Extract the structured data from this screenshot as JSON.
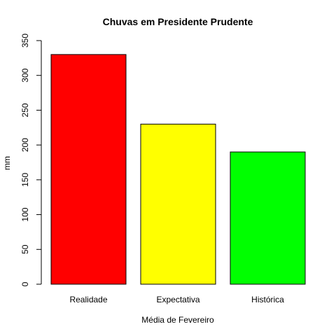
{
  "chart_data": {
    "type": "bar",
    "title": "Chuvas em Presidente Prudente",
    "xlabel": "Média de Fevereiro",
    "ylabel": "mm",
    "categories": [
      "Realidade",
      "Expectativa",
      "Histórica"
    ],
    "values": [
      330,
      230,
      190
    ],
    "colors": [
      "#ff0000",
      "#ffff00",
      "#00ff00"
    ],
    "ylim": [
      0,
      350
    ],
    "yticks": [
      0,
      50,
      100,
      150,
      200,
      250,
      300,
      350
    ],
    "grid": false,
    "legend": "none"
  }
}
